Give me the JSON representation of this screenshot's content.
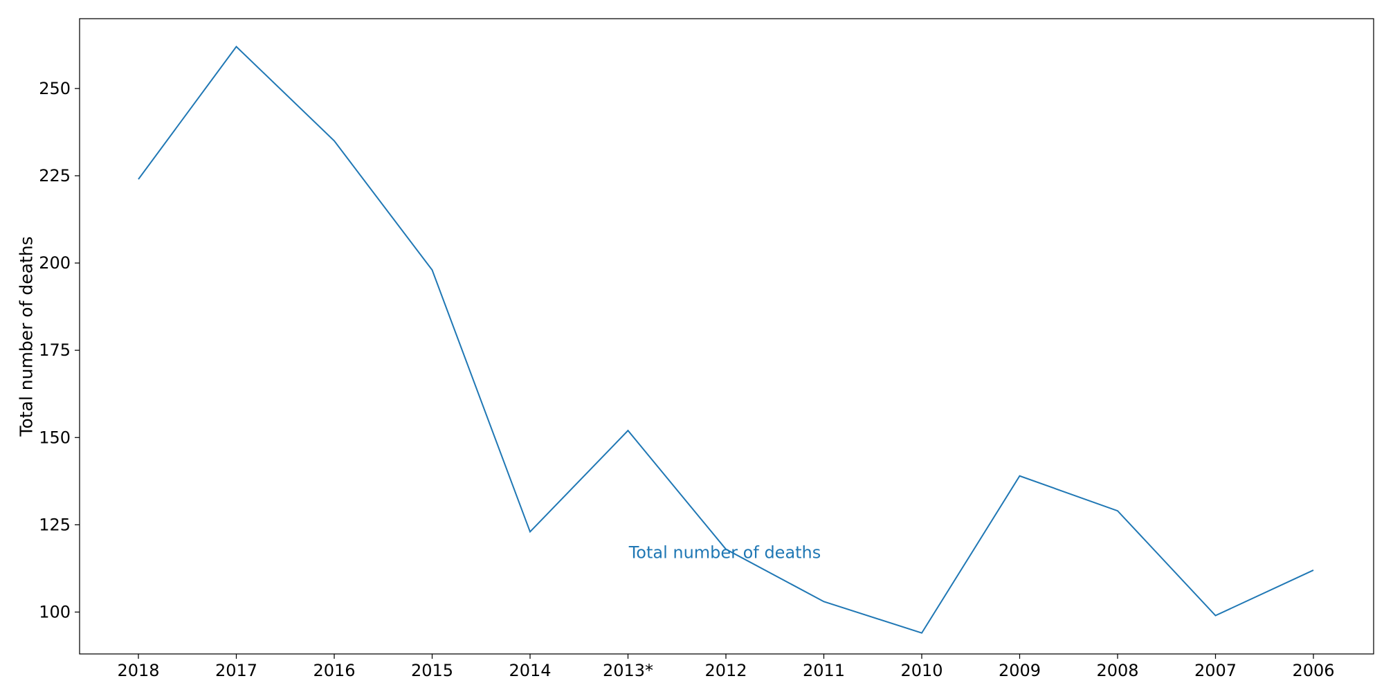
{
  "chart_data": {
    "type": "line",
    "categories": [
      "2018",
      "2017",
      "2016",
      "2015",
      "2014",
      "2013*",
      "2012",
      "2011",
      "2010",
      "2009",
      "2008",
      "2007",
      "2006"
    ],
    "series": [
      {
        "values": [
          224,
          262,
          235,
          198,
          123,
          152,
          118,
          103,
          94,
          139,
          129,
          99,
          112
        ],
        "color": "#1f77b4"
      }
    ],
    "title": "",
    "xlabel": "",
    "ylabel": "Total number of deaths",
    "ylim": [
      88,
      270
    ],
    "yticks": [
      100,
      125,
      150,
      175,
      200,
      225,
      250
    ],
    "grid": false,
    "annotation": {
      "text": "Total number of deaths",
      "color": "#1f77b4",
      "anchor_category": "2013*",
      "anchor_value": 117
    }
  }
}
